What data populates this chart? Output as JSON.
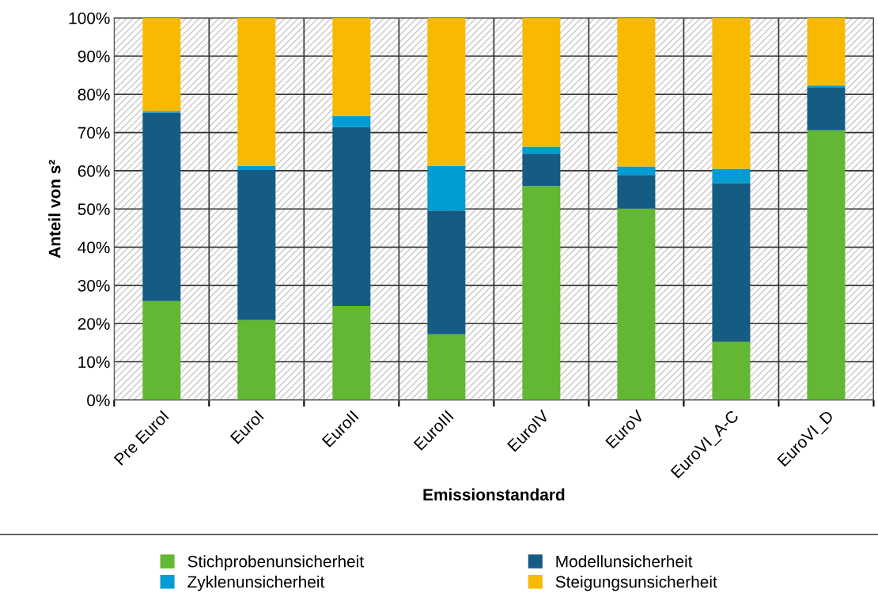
{
  "chart_data": {
    "type": "bar",
    "stacked": true,
    "xlabel": "Emissionstandard",
    "ylabel": "Anteil von s²",
    "categories": [
      "Pre EuroI",
      "EuroI",
      "EuroII",
      "EuroIII",
      "EuroIV",
      "EuroV",
      "EuroVI_A-C",
      "EuroVI_D"
    ],
    "series": [
      {
        "name": "Stichprobenunsicherheit",
        "color": "#62b733",
        "values": [
          25.9,
          20.9,
          24.6,
          17.2,
          56.0,
          50.1,
          15.3,
          70.6
        ]
      },
      {
        "name": "Modellunsicherheit",
        "color": "#155c85",
        "values": [
          49.3,
          39.3,
          46.8,
          32.4,
          8.5,
          8.8,
          41.5,
          11.1
        ]
      },
      {
        "name": "Zyklenunsicherheit",
        "color": "#019cd3",
        "values": [
          0.4,
          1.1,
          2.9,
          11.7,
          1.8,
          2.2,
          3.7,
          0.6
        ]
      },
      {
        "name": "Steigungsunsicherheit",
        "color": "#f8b901",
        "values": [
          24.4,
          38.7,
          25.7,
          38.7,
          33.7,
          38.9,
          39.5,
          17.7
        ]
      }
    ],
    "ylim": [
      0,
      100
    ],
    "yticks": [
      {
        "value": 0,
        "label": "0%"
      },
      {
        "value": 10,
        "label": "10%"
      },
      {
        "value": 20,
        "label": "20%"
      },
      {
        "value": 30,
        "label": "30%"
      },
      {
        "value": 40,
        "label": "40%"
      },
      {
        "value": 50,
        "label": "50%"
      },
      {
        "value": 60,
        "label": "60%"
      },
      {
        "value": 70,
        "label": "70%"
      },
      {
        "value": 80,
        "label": "80%"
      },
      {
        "value": 90,
        "label": "90%"
      },
      {
        "value": 100,
        "label": "100%"
      }
    ],
    "grid": true,
    "legend": "bottom"
  }
}
